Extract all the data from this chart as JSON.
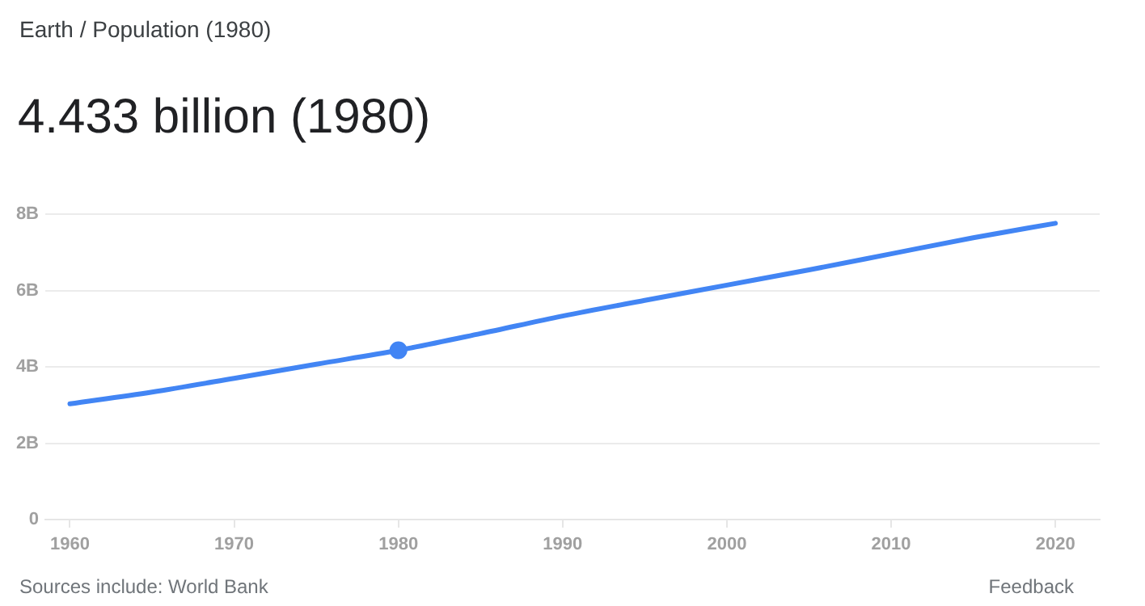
{
  "chart_data": {
    "type": "line",
    "subtitle": "Earth / Population (1980)",
    "title": "4.433 billion (1980)",
    "x": [
      1960,
      1965,
      1970,
      1975,
      1980,
      1985,
      1990,
      1995,
      2000,
      2005,
      2010,
      2015,
      2020
    ],
    "series": [
      {
        "color": "#4285f4",
        "marker": "none",
        "values": [
          3.03,
          3.34,
          3.7,
          4.07,
          4.433,
          4.87,
          5.33,
          5.74,
          6.14,
          6.54,
          6.96,
          7.38,
          7.76
        ]
      },
      {
        "type": "scatter",
        "color": "#4285f4",
        "marker": "circle",
        "x": [
          1980
        ],
        "values": [
          4.433
        ]
      }
    ],
    "xlim": [
      1958.5,
      2022.7
    ],
    "xticks": [
      1960,
      1970,
      1980,
      1990,
      2000,
      2010,
      2020
    ],
    "ylim": [
      0,
      8
    ],
    "yticks": [
      0,
      {
        "value": 2,
        "label": "2B"
      },
      {
        "value": 4,
        "label": "4B"
      },
      {
        "value": 6,
        "label": "6B"
      },
      {
        "value": 8,
        "label": "8B"
      }
    ],
    "grid": "y",
    "legend": false,
    "annotations": [
      "Sources include: World Bank",
      "Feedback"
    ]
  }
}
